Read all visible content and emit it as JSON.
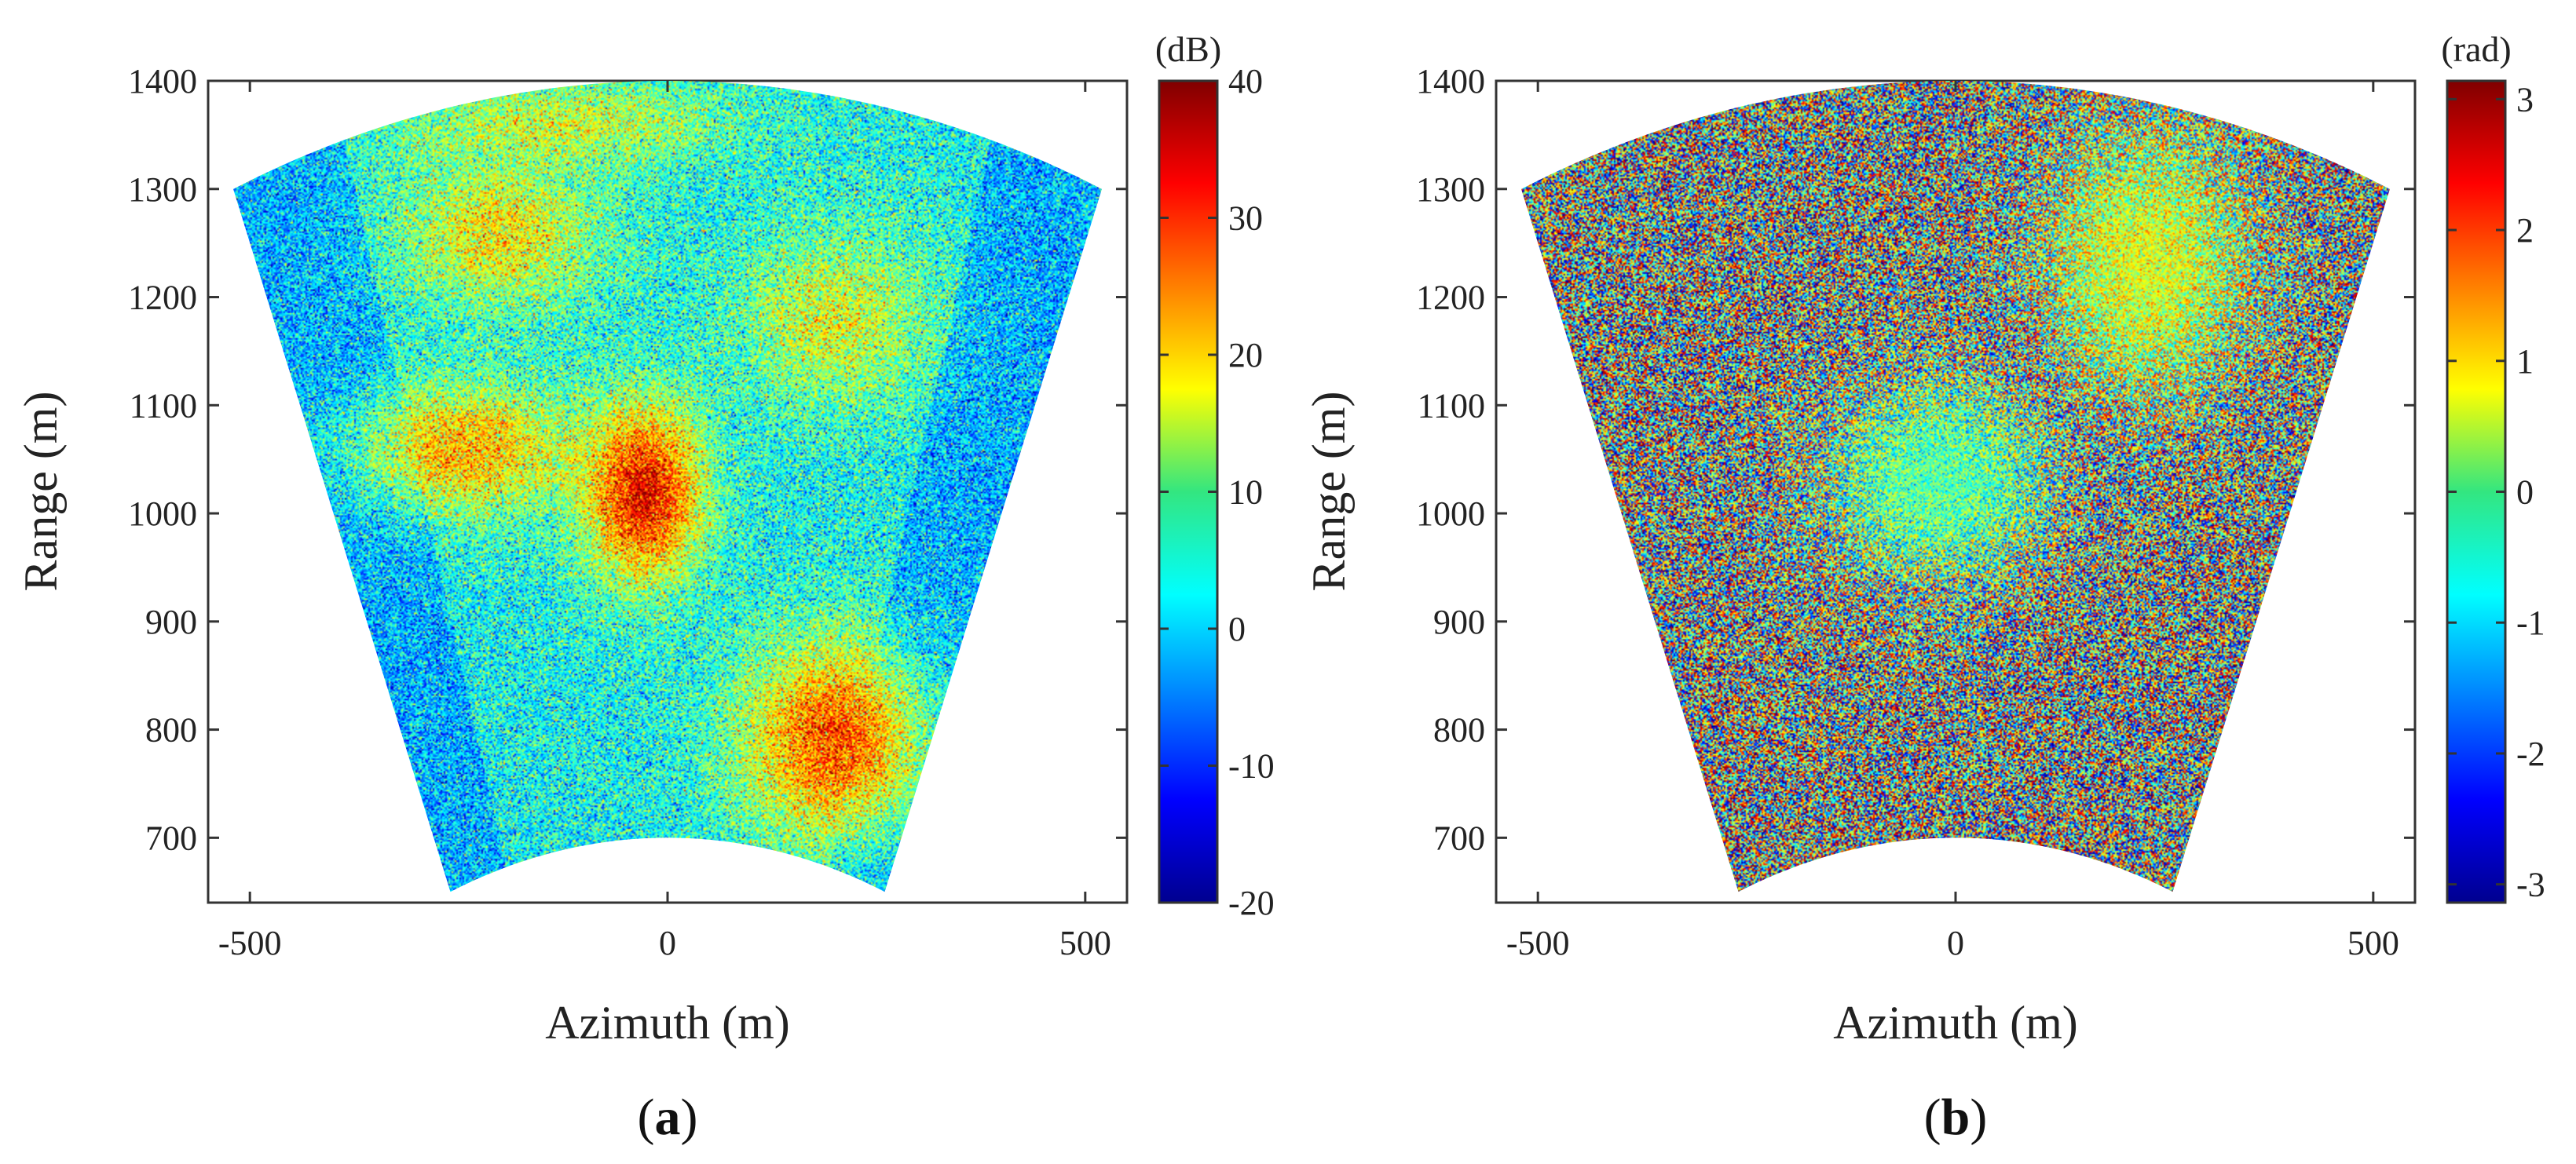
{
  "chart_data": [
    {
      "type": "heatmap",
      "panel": "a",
      "caption_letter": "a",
      "x": {
        "title": "Azimuth (m)",
        "lim": [
          -550,
          550
        ],
        "ticks": [
          -500,
          0,
          500
        ],
        "tick_labels": [
          "-500",
          "0",
          "500"
        ]
      },
      "y": {
        "title": "Range (m)",
        "lim": [
          640,
          1400
        ],
        "ticks": [
          700,
          800,
          900,
          1000,
          1100,
          1200,
          1300,
          1400
        ],
        "tick_labels": [
          "700",
          "800",
          "900",
          "1000",
          "1100",
          "1200",
          "1300",
          "1400"
        ]
      },
      "fan": {
        "inner_radius": 700,
        "outer_radius": 1400,
        "half_angle_deg": 21.8
      },
      "colorbar": {
        "unit": "(dB)",
        "lim": [
          -20,
          40
        ],
        "ticks": [
          -20,
          -10,
          0,
          10,
          20,
          30,
          40
        ],
        "tick_labels": [
          "-20",
          "-10",
          "0",
          "10",
          "20",
          "30",
          "40"
        ],
        "colormap": "jet"
      },
      "regions": [
        {
          "azimuth": -30,
          "range": 1020,
          "value": 34,
          "spread_az": 70,
          "spread_rg": 80
        },
        {
          "azimuth": 200,
          "range": 790,
          "value": 28,
          "spread_az": 110,
          "spread_rg": 90
        },
        {
          "azimuth": -240,
          "range": 1060,
          "value": 22,
          "spread_az": 130,
          "spread_rg": 60
        },
        {
          "azimuth": -200,
          "range": 1260,
          "value": 18,
          "spread_az": 120,
          "spread_rg": 70
        },
        {
          "azimuth": 200,
          "range": 1180,
          "value": 16,
          "spread_az": 110,
          "spread_rg": 80
        },
        {
          "azimuth": -120,
          "range": 1360,
          "value": 15,
          "spread_az": 200,
          "spread_rg": 40
        }
      ],
      "background_value": 3
    },
    {
      "type": "heatmap",
      "panel": "b",
      "caption_letter": "b",
      "x": {
        "title": "Azimuth (m)",
        "lim": [
          -550,
          550
        ],
        "ticks": [
          -500,
          0,
          500
        ],
        "tick_labels": [
          "-500",
          "0",
          "500"
        ]
      },
      "y": {
        "title": "Range (m)",
        "lim": [
          640,
          1400
        ],
        "ticks": [
          700,
          800,
          900,
          1000,
          1100,
          1200,
          1300,
          1400
        ],
        "tick_labels": [
          "700",
          "800",
          "900",
          "1000",
          "1100",
          "1200",
          "1300",
          "1400"
        ]
      },
      "fan": {
        "inner_radius": 700,
        "outer_radius": 1400,
        "half_angle_deg": 21.8
      },
      "colorbar": {
        "unit": "(rad)",
        "lim": [
          -3.14,
          3.14
        ],
        "ticks": [
          -3,
          -2,
          -1,
          0,
          1,
          2,
          3
        ],
        "tick_labels": [
          "-3",
          "-2",
          "-1",
          "0",
          "1",
          "2",
          "3"
        ],
        "colormap": "jet"
      },
      "coherent_regions": [
        {
          "azimuth": -20,
          "range": 1030,
          "value": -0.3,
          "spread_az": 130,
          "spread_rg": 90
        },
        {
          "azimuth": 230,
          "range": 1230,
          "value": 0.6,
          "spread_az": 120,
          "spread_rg": 120
        }
      ],
      "background": "random phase"
    }
  ]
}
